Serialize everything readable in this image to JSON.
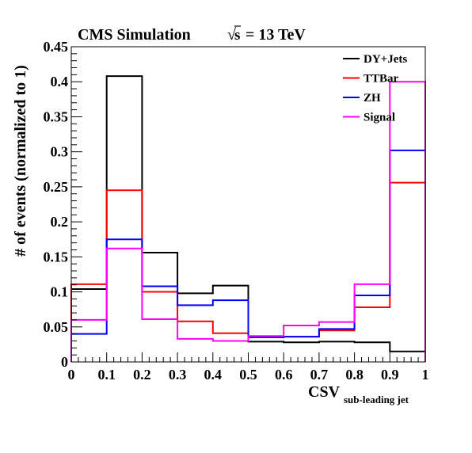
{
  "chart_data": {
    "type": "step-histogram",
    "title": "CMS Simulation",
    "energy_label": {
      "sqrt_symbol": "√",
      "variable": "s",
      "rest": "= 13 TeV"
    },
    "xlabel": {
      "main": "CSV",
      "subscript": "sub-leading jet"
    },
    "ylabel": "# of events (normalized to 1)",
    "xlim": [
      0,
      1
    ],
    "ylim": [
      0,
      0.45
    ],
    "x_ticks": [
      "0",
      "0.1",
      "0.2",
      "0.3",
      "0.4",
      "0.5",
      "0.6",
      "0.7",
      "0.8",
      "0.9",
      "1"
    ],
    "y_ticks": [
      "0",
      "0.05",
      "0.1",
      "0.15",
      "0.2",
      "0.25",
      "0.3",
      "0.35",
      "0.4",
      "0.45"
    ],
    "bin_edges": [
      0,
      0.1,
      0.2,
      0.3,
      0.4,
      0.5,
      0.6,
      0.7,
      0.8,
      0.9,
      1.0
    ],
    "legend_position": "top-right",
    "grid": false,
    "series": [
      {
        "name": "DY+Jets",
        "color": "#000000",
        "values": [
          0.104,
          0.408,
          0.156,
          0.098,
          0.109,
          0.029,
          0.028,
          0.029,
          0.028,
          0.015
        ]
      },
      {
        "name": "TTBar",
        "color": "#ff0000",
        "values": [
          0.111,
          0.245,
          0.1,
          0.058,
          0.041,
          0.036,
          0.036,
          0.045,
          0.078,
          0.256
        ]
      },
      {
        "name": "ZH",
        "color": "#0000ff",
        "values": [
          0.04,
          0.175,
          0.108,
          0.081,
          0.088,
          0.035,
          0.036,
          0.047,
          0.095,
          0.302
        ]
      },
      {
        "name": "Signal",
        "color": "#ff00ff",
        "values": [
          0.06,
          0.162,
          0.061,
          0.033,
          0.03,
          0.037,
          0.052,
          0.057,
          0.111,
          0.4
        ]
      }
    ]
  }
}
